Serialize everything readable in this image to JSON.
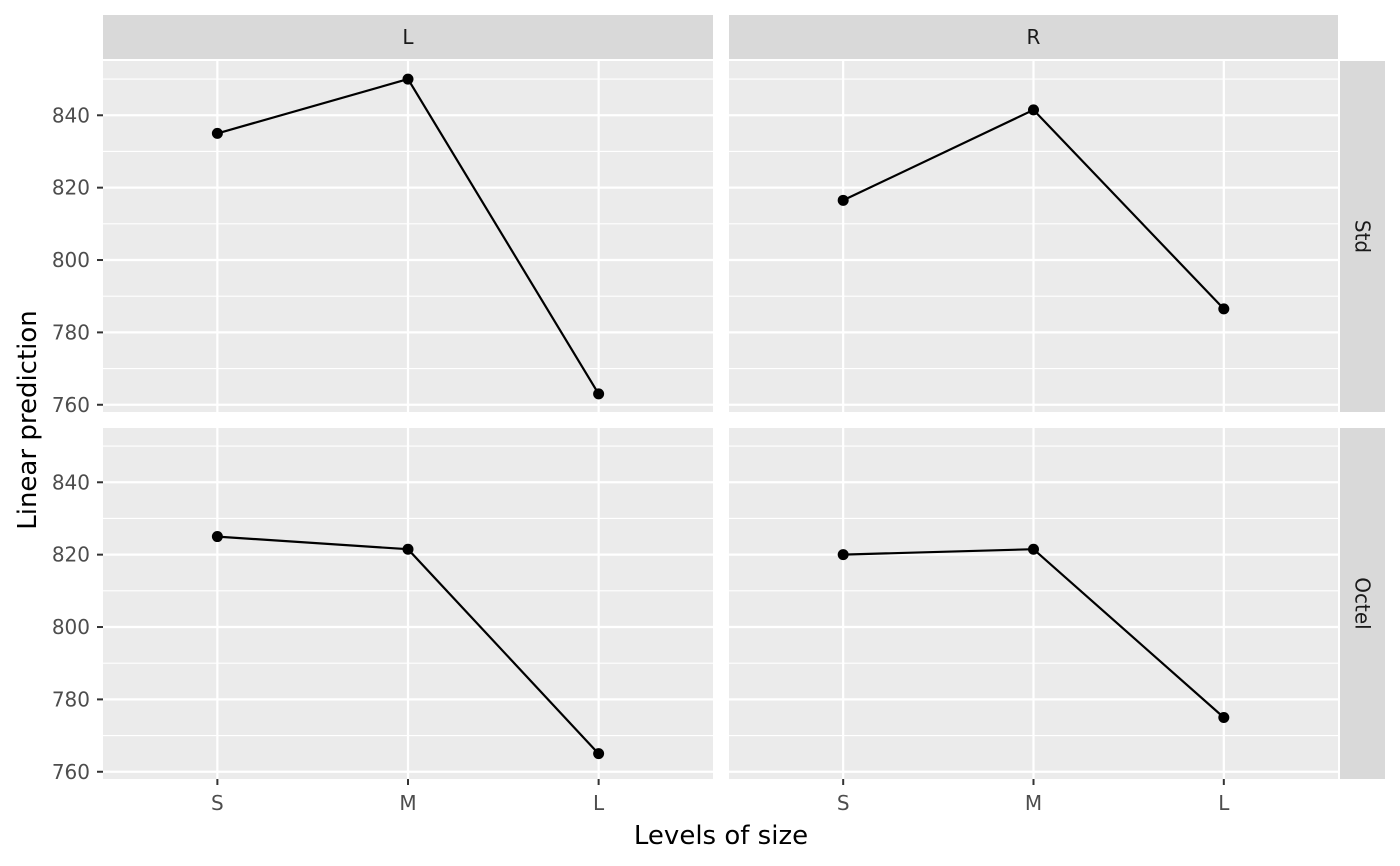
{
  "chart_data": {
    "type": "line",
    "xlabel": "Levels of size",
    "ylabel": "Linear prediction",
    "categories": [
      "S",
      "M",
      "L"
    ],
    "ylim": [
      758,
      855
    ],
    "yticks": [
      760,
      780,
      800,
      820,
      840
    ],
    "facet_columns": [
      "L",
      "R"
    ],
    "facet_rows": [
      "Std",
      "Octel"
    ],
    "panels": [
      {
        "col": "L",
        "row": "Std",
        "values": [
          835,
          850,
          763
        ]
      },
      {
        "col": "R",
        "row": "Std",
        "values": [
          816.5,
          841.5,
          786.5
        ]
      },
      {
        "col": "L",
        "row": "Octel",
        "values": [
          825,
          821.5,
          765
        ]
      },
      {
        "col": "R",
        "row": "Octel",
        "values": [
          820,
          821.5,
          775
        ]
      }
    ],
    "colors": {
      "panel_background": "#ebebeb",
      "grid": "#ffffff",
      "strip_background": "#d9d9d9",
      "line": "#000000",
      "point": "#000000"
    }
  }
}
